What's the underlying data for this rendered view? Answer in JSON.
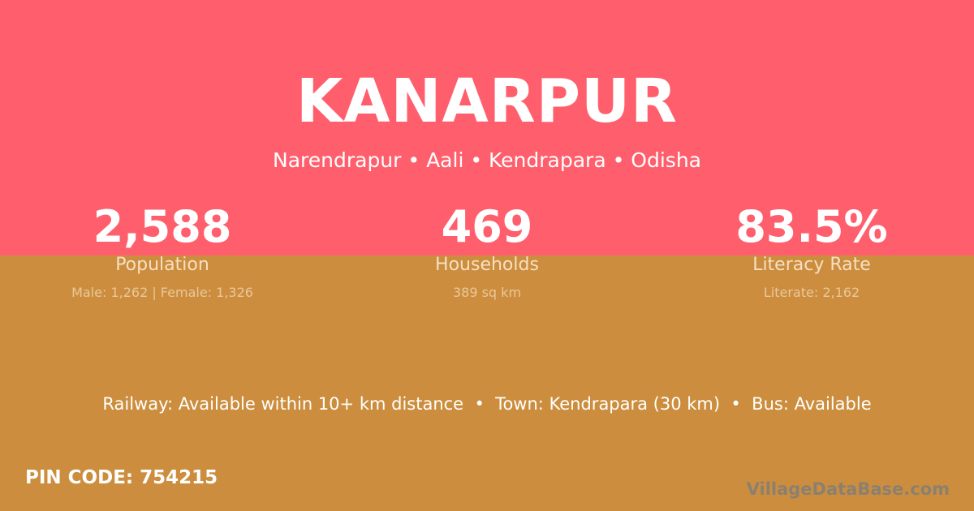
{
  "colors": {
    "top": "#ff5f6d",
    "bottom": "#cc8e3e"
  },
  "title": "KANARPUR",
  "subtitle": "Narendrapur • Aali • Kendrapara • Odisha",
  "stats": [
    {
      "value": "2,588",
      "label": "Population",
      "detail": "Male: 1,262 | Female: 1,326"
    },
    {
      "value": "469",
      "label": "Households",
      "detail": "389 sq km"
    },
    {
      "value": "83.5%",
      "label": "Literacy Rate",
      "detail": "Literate: 2,162"
    }
  ],
  "info": "Railway: Available within 10+ km distance  •  Town: Kendrapara (30 km)  •  Bus: Available",
  "pin": "PIN CODE: 754215",
  "watermark": "VillageDataBase.com"
}
